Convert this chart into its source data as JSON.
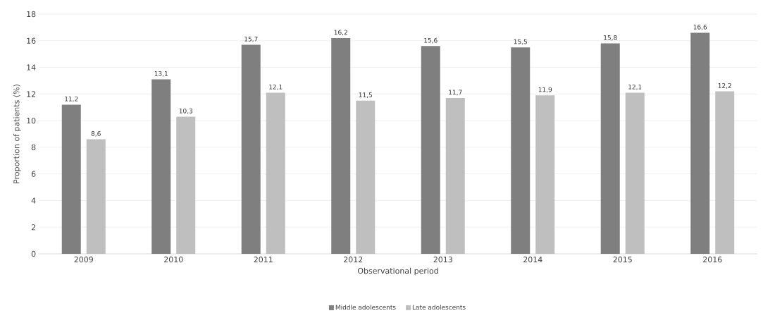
{
  "chart_data": {
    "type": "bar",
    "xlabel": "Observational period",
    "ylabel": "Proportion of patients (%)",
    "categories": [
      "2009",
      "2010",
      "2011",
      "2012",
      "2013",
      "2014",
      "2015",
      "2016"
    ],
    "series": [
      {
        "name": "Middle adolescents",
        "color": "#7f7f7f",
        "values": [
          11.2,
          13.1,
          15.7,
          16.2,
          15.6,
          15.5,
          15.8,
          16.6
        ],
        "value_labels": [
          "11,2",
          "13,1",
          "15,7",
          "16,2",
          "15,6",
          "15,5",
          "15,8",
          "16,6"
        ]
      },
      {
        "name": "Late adolescents",
        "color": "#bfbfbf",
        "values": [
          8.6,
          10.3,
          12.1,
          11.5,
          11.7,
          11.9,
          12.1,
          12.2
        ],
        "value_labels": [
          "8,6",
          "10,3",
          "12,1",
          "11,5",
          "11,7",
          "11,9",
          "12,1",
          "12,2"
        ]
      }
    ],
    "ylim": [
      0,
      18
    ],
    "yticks": [
      0,
      2,
      4,
      6,
      8,
      10,
      12,
      14,
      16,
      18
    ],
    "grid": "y",
    "legend": "bottom"
  }
}
